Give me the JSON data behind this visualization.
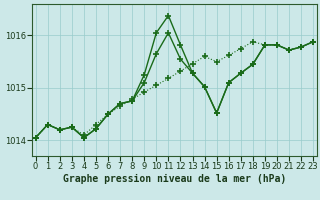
{
  "xlabel": "Graphe pression niveau de la mer (hPa)",
  "bg_color": "#cce8e8",
  "grid_color": "#99cccc",
  "line_color": "#1a6b1a",
  "ylim": [
    1013.7,
    1016.6
  ],
  "yticks": [
    1014,
    1015,
    1016
  ],
  "xlim": [
    -0.3,
    23.3
  ],
  "xticks": [
    0,
    1,
    2,
    3,
    4,
    5,
    6,
    7,
    8,
    9,
    10,
    11,
    12,
    13,
    14,
    15,
    16,
    17,
    18,
    19,
    20,
    21,
    22,
    23
  ],
  "series_dotted_x": [
    0,
    1,
    2,
    3,
    4,
    5,
    6,
    7,
    8,
    9,
    10,
    11,
    12,
    13,
    14,
    15,
    16,
    17,
    18,
    19,
    20,
    21,
    22,
    23
  ],
  "series_dotted_y": [
    1014.05,
    1014.3,
    1014.2,
    1014.25,
    1014.1,
    1014.3,
    1014.5,
    1014.65,
    1014.78,
    1014.92,
    1015.05,
    1015.18,
    1015.32,
    1015.46,
    1015.6,
    1015.5,
    1015.62,
    1015.75,
    1015.88,
    1015.82,
    1015.82,
    1015.72,
    1015.78,
    1015.88
  ],
  "series_peak_x": [
    0,
    1,
    2,
    3,
    4,
    5,
    6,
    7,
    8,
    9,
    10,
    11,
    12,
    13,
    14,
    15,
    16,
    17,
    18,
    19,
    20,
    21,
    22,
    23
  ],
  "series_peak_y": [
    1014.05,
    1014.3,
    1014.2,
    1014.25,
    1014.05,
    1014.22,
    1014.5,
    1014.7,
    1014.75,
    1015.25,
    1016.05,
    1016.38,
    1015.82,
    1015.28,
    1015.02,
    1014.52,
    1015.1,
    1015.28,
    1015.45,
    1015.82,
    1015.82,
    1015.72,
    1015.78,
    1015.88
  ],
  "series_smooth_x": [
    0,
    1,
    2,
    3,
    4,
    5,
    6,
    7,
    8,
    9,
    10,
    11,
    12,
    13,
    14,
    15,
    16,
    17,
    18,
    19,
    20,
    21,
    22,
    23
  ],
  "series_smooth_y": [
    1014.05,
    1014.3,
    1014.2,
    1014.25,
    1014.05,
    1014.22,
    1014.5,
    1014.7,
    1014.75,
    1015.1,
    1015.65,
    1016.05,
    1015.55,
    1015.28,
    1015.02,
    1014.52,
    1015.1,
    1015.28,
    1015.45,
    1015.82,
    1015.82,
    1015.72,
    1015.78,
    1015.88
  ],
  "marker": "+",
  "markersize": 4,
  "markeredgewidth": 1.2,
  "linewidth_dotted": 0.8,
  "linewidth_solid": 1.0,
  "xlabel_fontsize": 7,
  "tick_fontsize": 6,
  "spine_color": "#2d5a2d",
  "tick_color": "#1a3a1a"
}
